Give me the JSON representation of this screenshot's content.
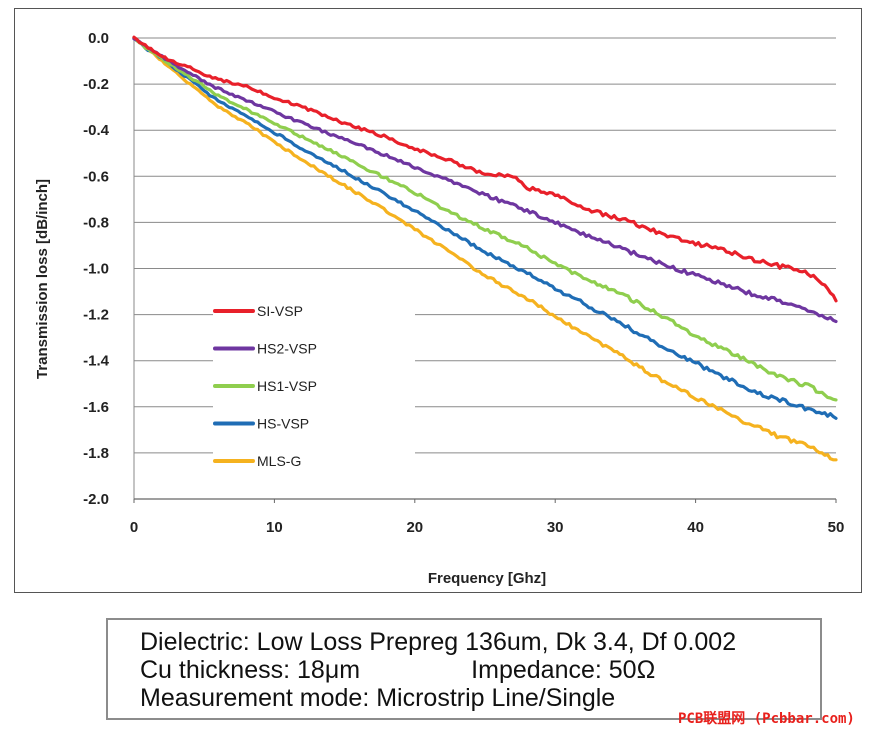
{
  "chart_data": {
    "type": "line",
    "title": "",
    "xlabel": "Frequency [Ghz]",
    "ylabel": "Transmission loss [dB/inch]",
    "xlim": [
      0,
      50
    ],
    "ylim": [
      -2.0,
      0.0
    ],
    "x_ticks": [
      "0",
      "10",
      "20",
      "30",
      "40",
      "50"
    ],
    "y_ticks": [
      "0.0",
      "-0.2",
      "-0.4",
      "-0.6",
      "-0.8",
      "-1.0",
      "-1.2",
      "-1.4",
      "-1.6",
      "-1.8",
      "-2.0"
    ],
    "grid": "horizontal",
    "legend_position": "left-lower",
    "series": [
      {
        "name": "SI-VSP",
        "color": "#e8202a",
        "x": [
          0,
          1,
          2,
          3,
          4,
          5,
          6,
          8,
          10,
          12,
          15,
          18,
          20,
          22,
          25,
          27,
          28,
          30,
          32,
          35,
          38,
          40,
          42,
          44,
          46,
          48,
          49,
          50
        ],
        "y": [
          0,
          -0.04,
          -0.08,
          -0.11,
          -0.13,
          -0.16,
          -0.18,
          -0.21,
          -0.26,
          -0.3,
          -0.37,
          -0.43,
          -0.48,
          -0.52,
          -0.59,
          -0.6,
          -0.65,
          -0.68,
          -0.74,
          -0.79,
          -0.86,
          -0.89,
          -0.92,
          -0.96,
          -0.99,
          -1.02,
          -1.06,
          -1.14
        ]
      },
      {
        "name": "HS2-VSP",
        "color": "#6e36a0",
        "x": [
          0,
          1,
          2,
          3,
          4,
          5,
          6,
          8,
          10,
          12,
          15,
          18,
          20,
          22,
          25,
          28,
          30,
          32,
          35,
          38,
          40,
          42,
          44,
          46,
          48,
          49,
          50
        ],
        "y": [
          0,
          -0.04,
          -0.08,
          -0.12,
          -0.15,
          -0.19,
          -0.22,
          -0.27,
          -0.32,
          -0.37,
          -0.44,
          -0.51,
          -0.56,
          -0.61,
          -0.68,
          -0.75,
          -0.8,
          -0.85,
          -0.92,
          -0.99,
          -1.03,
          -1.07,
          -1.11,
          -1.14,
          -1.18,
          -1.2,
          -1.23
        ]
      },
      {
        "name": "HS1-VSP",
        "color": "#8fce4e",
        "x": [
          0,
          1,
          2,
          3,
          4,
          5,
          6,
          8,
          10,
          12,
          15,
          18,
          20,
          22,
          25,
          28,
          30,
          32,
          35,
          38,
          40,
          42,
          44,
          46,
          48,
          49,
          50
        ],
        "y": [
          0,
          -0.05,
          -0.09,
          -0.13,
          -0.17,
          -0.21,
          -0.25,
          -0.31,
          -0.37,
          -0.43,
          -0.52,
          -0.61,
          -0.67,
          -0.74,
          -0.83,
          -0.91,
          -0.98,
          -1.04,
          -1.12,
          -1.22,
          -1.29,
          -1.35,
          -1.41,
          -1.47,
          -1.51,
          -1.54,
          -1.57
        ]
      },
      {
        "name": "HS-VSP",
        "color": "#1f6db5",
        "x": [
          0,
          1,
          2,
          3,
          4,
          5,
          6,
          8,
          10,
          12,
          15,
          18,
          20,
          22,
          25,
          28,
          30,
          32,
          35,
          38,
          40,
          42,
          44,
          46,
          48,
          49,
          50
        ],
        "y": [
          0,
          -0.05,
          -0.09,
          -0.14,
          -0.18,
          -0.23,
          -0.27,
          -0.34,
          -0.41,
          -0.48,
          -0.58,
          -0.68,
          -0.75,
          -0.82,
          -0.93,
          -1.02,
          -1.09,
          -1.15,
          -1.25,
          -1.35,
          -1.41,
          -1.47,
          -1.53,
          -1.57,
          -1.61,
          -1.62,
          -1.65
        ]
      },
      {
        "name": "MLS-G",
        "color": "#f5b21f",
        "x": [
          0,
          1,
          2,
          3,
          4,
          5,
          6,
          8,
          10,
          12,
          15,
          18,
          20,
          22,
          25,
          28,
          30,
          32,
          35,
          38,
          40,
          42,
          44,
          46,
          48,
          49,
          50
        ],
        "y": [
          0,
          -0.05,
          -0.1,
          -0.15,
          -0.2,
          -0.25,
          -0.3,
          -0.37,
          -0.45,
          -0.53,
          -0.64,
          -0.75,
          -0.83,
          -0.91,
          -1.03,
          -1.13,
          -1.21,
          -1.28,
          -1.39,
          -1.5,
          -1.56,
          -1.62,
          -1.68,
          -1.73,
          -1.77,
          -1.8,
          -1.83
        ]
      }
    ]
  },
  "info": {
    "line1": "Dielectric: Low Loss Prepreg 136um, Dk 3.4, Df 0.002",
    "line2": "Cu thickness: 18μm                Impedance: 50Ω",
    "line3": "Measurement mode: Microstrip Line/Single"
  },
  "watermark": "PCB联盟网 (Pcbbar.com)"
}
